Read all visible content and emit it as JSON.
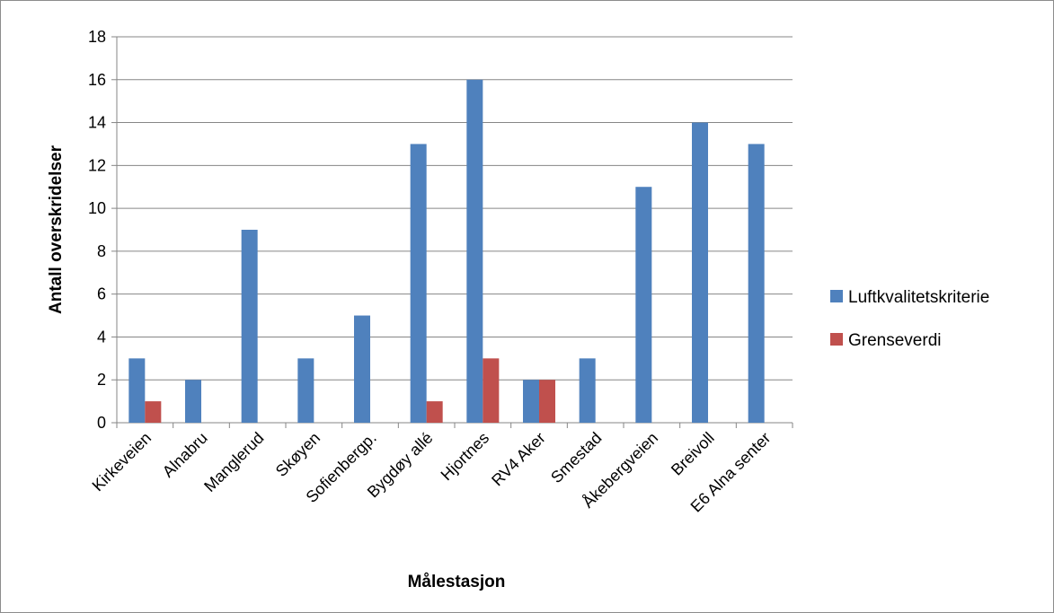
{
  "chart_data": {
    "type": "bar",
    "title": "",
    "xlabel": "Målestasjon",
    "ylabel": "Antall overskridelser",
    "ylim": [
      0,
      18
    ],
    "yticks": [
      0,
      2,
      4,
      6,
      8,
      10,
      12,
      14,
      16,
      18
    ],
    "grid": true,
    "legend_position": "right",
    "categories": [
      "Kirkeveien",
      "Alnabru",
      "Manglerud",
      "Skøyen",
      "Sofienbergp.",
      "Bygdøy allé",
      "Hjortnes",
      "RV4 Aker",
      "Smestad",
      "Åkebergveien",
      "Breivoll",
      "E6 Alna senter"
    ],
    "series": [
      {
        "name": "Luftkvalitetskriterie",
        "color": "#4f81bd",
        "values": [
          3,
          2,
          9,
          3,
          5,
          13,
          16,
          2,
          3,
          11,
          14,
          13
        ]
      },
      {
        "name": "Grenseverdi",
        "color": "#c0504d",
        "values": [
          1,
          null,
          null,
          null,
          null,
          1,
          3,
          2,
          null,
          null,
          null,
          null
        ]
      }
    ]
  }
}
